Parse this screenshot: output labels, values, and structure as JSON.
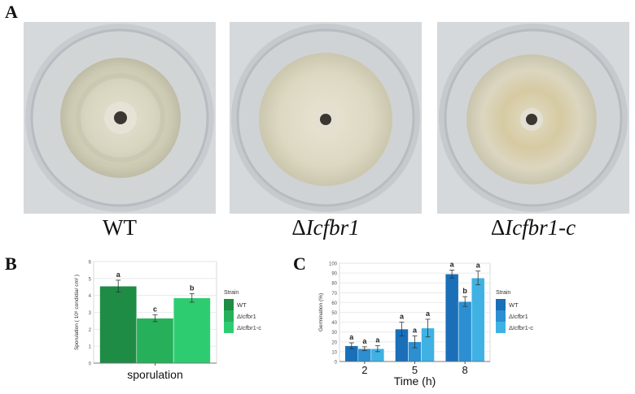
{
  "panel_a": {
    "letter": "A",
    "plates": [
      {
        "delta": "",
        "italic": "",
        "plain": "WT"
      },
      {
        "delta": "Δ",
        "italic": "Icfbr1",
        "plain": ""
      },
      {
        "delta": "Δ",
        "italic": "Icfbr1-c",
        "plain": ""
      }
    ]
  },
  "panel_b": {
    "letter": "B"
  },
  "panel_c": {
    "letter": "C"
  },
  "chart_data": [
    {
      "type": "bar",
      "panel": "B",
      "categories": [
        "sporulation"
      ],
      "series": [
        {
          "name": "WT",
          "values": [
            4.55
          ],
          "errors": [
            0.35
          ],
          "sig": [
            "a"
          ],
          "color": "#1e8c45"
        },
        {
          "name": "ΔIcfbr1",
          "values": [
            2.65
          ],
          "errors": [
            0.2
          ],
          "sig": [
            "c"
          ],
          "color": "#27b05a"
        },
        {
          "name": "ΔIcfbr1-c",
          "values": [
            3.85
          ],
          "errors": [
            0.25
          ],
          "sig": [
            "b"
          ],
          "color": "#2ecc71"
        }
      ],
      "xlabel": "",
      "ylabel": "Sporulation ( 10⁸ condidia/ cm² )",
      "ylim": [
        0,
        6
      ],
      "yticks": [
        0,
        1,
        2,
        3,
        4,
        5,
        6
      ],
      "legend_title": "Strain",
      "grid": true
    },
    {
      "type": "bar",
      "panel": "C",
      "categories": [
        "2",
        "5",
        "8"
      ],
      "series": [
        {
          "name": "WT",
          "values": [
            16,
            33,
            89
          ],
          "errors": [
            3,
            7,
            4
          ],
          "sig": [
            "a",
            "a",
            "a"
          ],
          "color": "#1a6fb8"
        },
        {
          "name": "ΔIcfbr1",
          "values": [
            13,
            20,
            61
          ],
          "errors": [
            2,
            6,
            5
          ],
          "sig": [
            "a",
            "a",
            "b"
          ],
          "color": "#2b8fd1"
        },
        {
          "name": "ΔIcfbr1-c",
          "values": [
            13,
            34,
            85
          ],
          "errors": [
            3,
            9,
            7
          ],
          "sig": [
            "a",
            "a",
            "a"
          ],
          "color": "#3fb2e3"
        }
      ],
      "xlabel": "Time (h)",
      "ylabel": "Germination (%)",
      "ylim": [
        0,
        100
      ],
      "yticks": [
        0,
        10,
        20,
        30,
        40,
        50,
        60,
        70,
        80,
        90,
        100
      ],
      "legend_title": "Strain",
      "grid": true
    }
  ]
}
